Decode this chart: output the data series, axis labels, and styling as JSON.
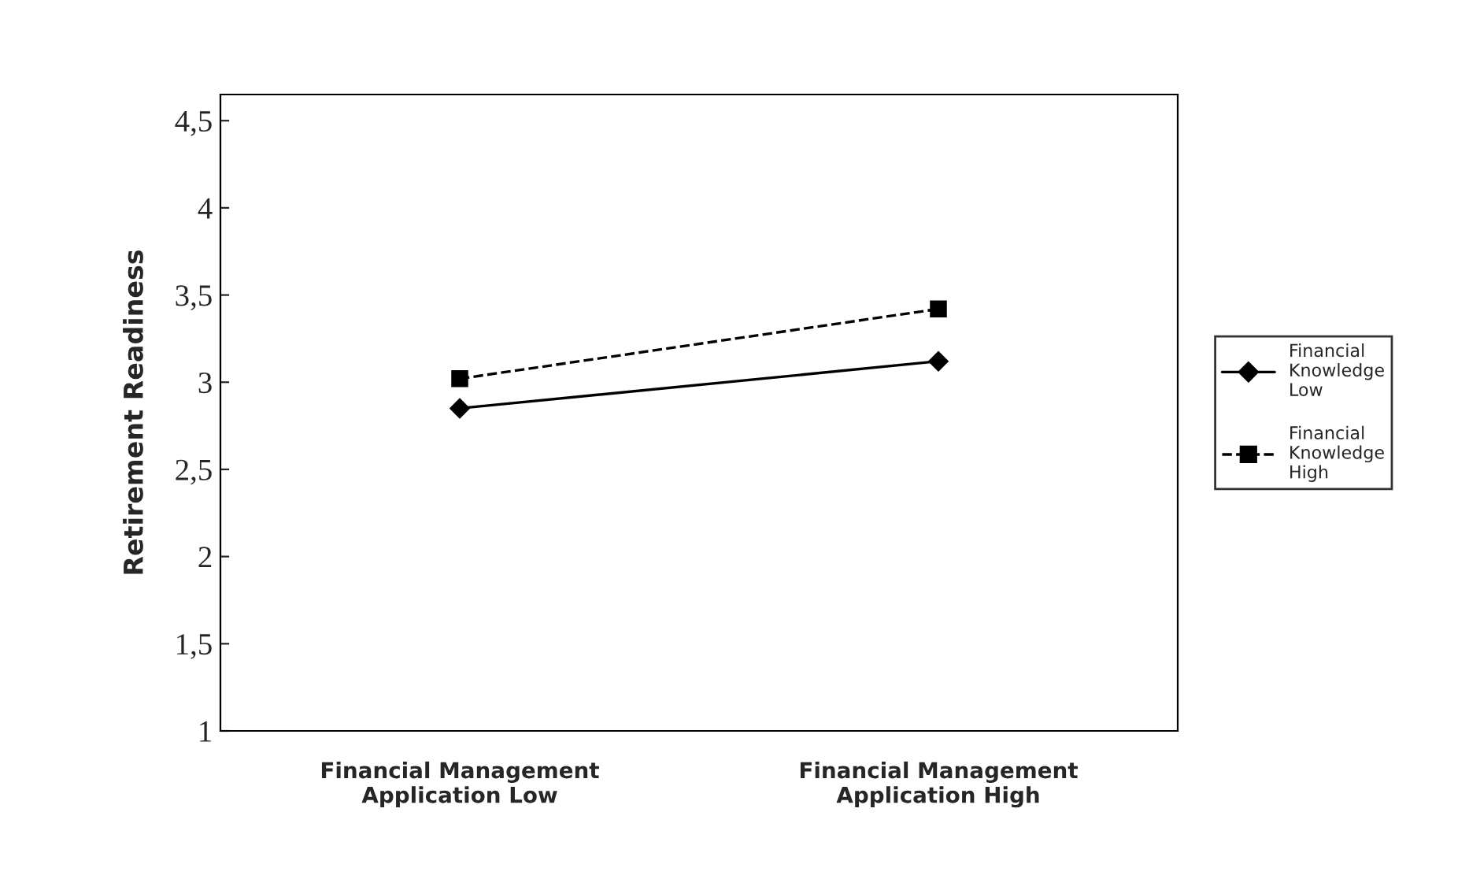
{
  "chart_data": {
    "type": "line",
    "ylabel": "Retirement Readiness",
    "categories": [
      "Financial Management\nApplication Low",
      "Financial Management\nApplication High"
    ],
    "series": [
      {
        "name": "Financial Knowledge Low",
        "color": "#000000",
        "values": [
          2.85,
          3.12
        ],
        "marker": "diamond",
        "line_style": "solid"
      },
      {
        "name": "Financial Knowledge High",
        "color": "#000000",
        "values": [
          3.02,
          3.42
        ],
        "marker": "square",
        "line_style": "dashed"
      }
    ],
    "ylim": [
      1,
      4.65
    ],
    "yticks": [
      1,
      {
        "value": 1.5,
        "label": "1,5"
      },
      2,
      {
        "value": 2.5,
        "label": "2,5"
      },
      3,
      {
        "value": 3.5,
        "label": "3,5"
      },
      4,
      {
        "value": 4.5,
        "label": "4,5"
      }
    ],
    "grid": false,
    "legend": "right"
  }
}
